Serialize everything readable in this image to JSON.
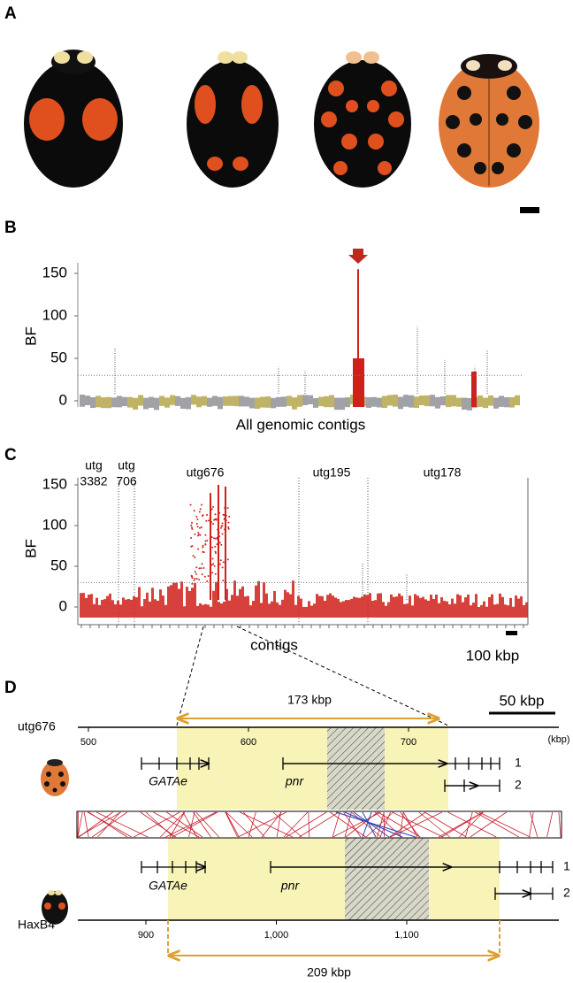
{
  "panel_labels": [
    "A",
    "B",
    "C",
    "D"
  ],
  "B": {
    "y_label": "BF",
    "x_label": "All genomic contigs",
    "ylim": [
      0,
      150
    ],
    "yticks": [
      0,
      50,
      100,
      150
    ],
    "threshold": 30,
    "spikes": [
      62,
      40,
      35,
      155,
      87,
      48,
      40,
      60
    ]
  },
  "C": {
    "y_label": "BF",
    "x_label": "contigs",
    "ylim": [
      0,
      150
    ],
    "yticks": [
      0,
      50,
      100,
      150
    ],
    "threshold": 30,
    "contig_labels": [
      [
        "utg",
        "3382"
      ],
      [
        "utg",
        "706"
      ],
      [
        "utg676"
      ],
      [
        "utg195"
      ],
      [
        "utg178"
      ]
    ],
    "scale_bar": "100 kbp",
    "spikes": [
      140,
      150,
      148,
      55,
      40
    ]
  },
  "D": {
    "top_name": "utg676",
    "top_ticks": [
      500,
      600,
      700
    ],
    "unit": "(kbp)",
    "scale_bar": "50 kbp",
    "top_span": "173 kbp",
    "genes_top": [
      "GATAe",
      "pnr"
    ],
    "isoforms_top": [
      "1",
      "2"
    ],
    "genes_bottom": [
      "GATAe",
      "pnr"
    ],
    "isoforms_bottom": [
      "1",
      "2"
    ],
    "bottom_name": "HaxB4",
    "bottom_ticks": [
      900,
      {
        "value": 1000,
        "label": "1,000"
      },
      {
        "value": 1100,
        "label": "1,100"
      }
    ],
    "bottom_span": "209 kbp"
  }
}
